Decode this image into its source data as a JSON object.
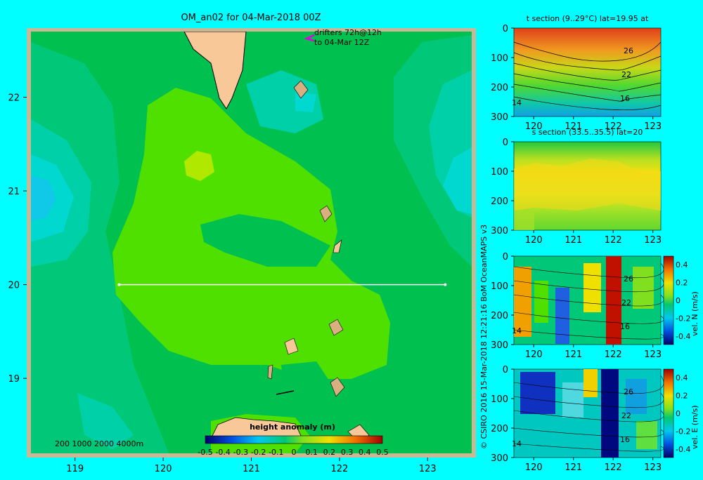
{
  "map": {
    "title": "OM_an02 for 04-Mar-2018 00Z",
    "drifters_line1": "drifters 72h@12h",
    "drifters_line2": "to 04-Mar 12Z",
    "x_ticks": [
      "119",
      "120",
      "121",
      "122",
      "123"
    ],
    "y_ticks": [
      "22",
      "21",
      "20",
      "19"
    ],
    "depth_legend": "200  1000  2000  4000m",
    "colorbar_title": "height anomaly (m)",
    "colorbar_ticks": [
      "-0.5",
      "-0.4",
      "-0.3",
      "-0.2",
      "-0.1",
      "0",
      "0.1",
      "0.2",
      "0.3",
      "0.4",
      "0.5"
    ],
    "credit": "© CSIRO 2016   15-Mar-2018 12:21:16 BoM OceanMAPS v3"
  },
  "sections": [
    {
      "title": "t section (9..29°C) lat=19.95 at",
      "y_ticks": [
        "0",
        "100",
        "200",
        "300"
      ],
      "x_ticks": [
        "120",
        "121",
        "122",
        "123"
      ],
      "contour_labels": [
        "26",
        "22",
        "16",
        "14"
      ],
      "colorbar_label": "",
      "colorbar_ticks": []
    },
    {
      "title": "s section (33.5..35.5) lat=20",
      "y_ticks": [
        "0",
        "100",
        "200",
        "300"
      ],
      "x_ticks": [
        "120",
        "121",
        "122",
        "123"
      ],
      "contour_labels": [],
      "colorbar_label": "",
      "colorbar_ticks": []
    },
    {
      "title": "",
      "y_ticks": [
        "0",
        "100",
        "200",
        "300"
      ],
      "x_ticks": [
        "120",
        "121",
        "122",
        "123"
      ],
      "contour_labels": [
        "26",
        "22",
        "16",
        "14"
      ],
      "colorbar_label": "vel. N (m/s)",
      "colorbar_ticks": [
        "0.4",
        "0.2",
        "0",
        "-0.2",
        "-0.4"
      ]
    },
    {
      "title": "",
      "y_ticks": [
        "0",
        "100",
        "200",
        "300"
      ],
      "x_ticks": [
        "120",
        "121",
        "122",
        "123"
      ],
      "contour_labels": [
        "26",
        "22",
        "16",
        "14"
      ],
      "colorbar_label": "vel. E (m/s)",
      "colorbar_ticks": [
        "0.4",
        "0.2",
        "0",
        "-0.2",
        "-0.4"
      ]
    }
  ],
  "chart_data": {
    "type": "heatmap",
    "title": "OM_an02 for 04-Mar-2018 00Z",
    "xlabel": "",
    "ylabel": "",
    "xlim": [
      118.5,
      123.5
    ],
    "ylim": [
      18.2,
      22.7
    ],
    "colorbar": {
      "label": "height anomaly (m)",
      "range": [
        -0.5,
        0.5
      ]
    },
    "section_line": {
      "lat": 20.0,
      "lon_start": 119.5,
      "lon_end": 123.2
    },
    "subplots": [
      {
        "title": "t section (9..29°C) lat=19.95 at",
        "x_range": [
          119.5,
          123.2
        ],
        "y_range": [
          0,
          300
        ],
        "contour_labels": [
          26,
          22,
          16,
          14
        ]
      },
      {
        "title": "s section (33.5..35.5) lat=20",
        "x_range": [
          119.5,
          123.2
        ],
        "y_range": [
          0,
          300
        ]
      },
      {
        "title": "",
        "colorbar_label": "vel. N (m/s)",
        "color_range": [
          -0.4,
          0.4
        ],
        "x_range": [
          119.5,
          123.2
        ],
        "y_range": [
          0,
          300
        ]
      },
      {
        "title": "",
        "colorbar_label": "vel. E (m/s)",
        "color_range": [
          -0.4,
          0.4
        ],
        "x_range": [
          119.5,
          123.2
        ],
        "y_range": [
          0,
          300
        ]
      }
    ]
  }
}
